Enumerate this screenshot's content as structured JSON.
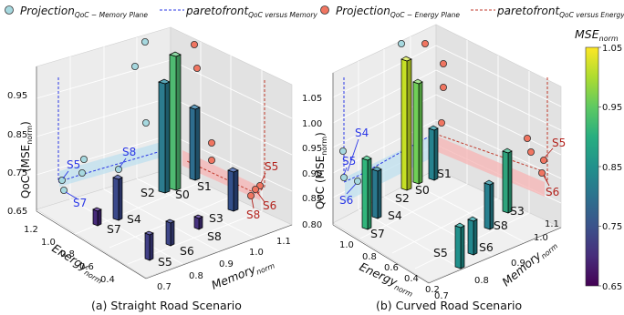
{
  "legend": {
    "items": [
      {
        "kind": "marker",
        "color": "#a6d8df",
        "base": "Projection",
        "sub": "QoC − Memory Plane"
      },
      {
        "kind": "line",
        "color": "#2a37e6",
        "base": "paretofront",
        "sub": "QoC versus Memory"
      },
      {
        "kind": "marker",
        "color": "#f07561",
        "base": "Projection",
        "sub": "QoC − Energy Plane"
      },
      {
        "kind": "line",
        "color": "#c0392b",
        "base": "paretofront",
        "sub": "QoC versus Energy"
      }
    ]
  },
  "colorbar": {
    "title_base": "MSE",
    "title_sub": "norm",
    "ticks": [
      "0.65",
      "0.75",
      "0.85",
      "0.95",
      "1.05"
    ],
    "min": 0.65,
    "max": 1.05,
    "colormap": "viridis"
  },
  "chart_data": [
    {
      "type": "3d-bar",
      "caption": "(a) Straight Road Scenario",
      "axes": {
        "z": {
          "label_base": "QoC (MSE",
          "label_sub": "norm",
          "label_end": ")",
          "ticks": [
            "0.65",
            "0.75",
            "0.85",
            "0.95"
          ],
          "range": [
            0.65,
            1.0
          ]
        },
        "energy": {
          "label_base": "Energy",
          "label_sub": "norm",
          "ticks": [
            "1.2",
            "1.0",
            "0.8",
            "0.6",
            "0.4"
          ]
        },
        "memory": {
          "label_base": "Memory",
          "label_sub": "norm",
          "ticks": [
            "0.7",
            "0.8",
            "0.9",
            "1.0",
            "1.1"
          ]
        }
      },
      "bars": [
        {
          "name": "S2",
          "qoc": 0.9,
          "color": "#2c7c8e"
        },
        {
          "name": "S0",
          "qoc": 0.95,
          "color": "#4fbb72"
        },
        {
          "name": "S1",
          "qoc": 0.78,
          "color": "#2e6d8e"
        },
        {
          "name": "S3",
          "qoc": 0.76,
          "color": "#33508b"
        },
        {
          "name": "S4",
          "qoc": 0.72,
          "color": "#3b498a"
        },
        {
          "name": "S7",
          "qoc": 0.68,
          "color": "#472b7a"
        },
        {
          "name": "S8",
          "qoc": 0.67,
          "color": "#46327e"
        },
        {
          "name": "S6",
          "qoc": 0.7,
          "color": "#3f4788"
        },
        {
          "name": "S5",
          "qoc": 0.69,
          "color": "#424086"
        }
      ],
      "point_labels": {
        "memory_plane": [
          "S5",
          "S7",
          "S8"
        ],
        "energy_plane": [
          "S5",
          "S8",
          "S6"
        ]
      }
    },
    {
      "type": "3d-bar",
      "caption": "(b) Curved Road Scenario",
      "axes": {
        "z": {
          "label_base": "QoC (MSE",
          "label_sub": "norm",
          "label_end": ")",
          "ticks": [
            "0.80",
            "0.85",
            "0.90",
            "0.95",
            "1.00",
            "1.05"
          ],
          "range": [
            0.8,
            1.08
          ]
        },
        "energy": {
          "label_base": "Energy",
          "label_sub": "norm",
          "ticks": [
            "1.0",
            "0.8",
            "0.6",
            "0.4",
            "0.2"
          ]
        },
        "memory": {
          "label_base": "Memory",
          "label_sub": "norm",
          "ticks": [
            "0.7",
            "0.8",
            "0.9",
            "1.0",
            "1.1"
          ]
        }
      },
      "bars": [
        {
          "name": "S2",
          "qoc": 1.04,
          "color": "#c5df25"
        },
        {
          "name": "S0",
          "qoc": 1.02,
          "color": "#70cf57"
        },
        {
          "name": "S1",
          "qoc": 0.92,
          "color": "#26828e"
        },
        {
          "name": "S3",
          "qoc": 0.91,
          "color": "#2ea37c"
        },
        {
          "name": "S4",
          "qoc": 0.87,
          "color": "#2a788e"
        },
        {
          "name": "S7",
          "qoc": 0.89,
          "color": "#31b57b"
        },
        {
          "name": "S8",
          "qoc": 0.86,
          "color": "#277f8e"
        },
        {
          "name": "S6",
          "qoc": 0.86,
          "color": "#23888e"
        },
        {
          "name": "S5",
          "qoc": 0.86,
          "color": "#21918c"
        }
      ],
      "point_labels": {
        "memory_plane": [
          "S4",
          "S5",
          "S6"
        ],
        "energy_plane": [
          "S5",
          "S6"
        ]
      }
    }
  ]
}
